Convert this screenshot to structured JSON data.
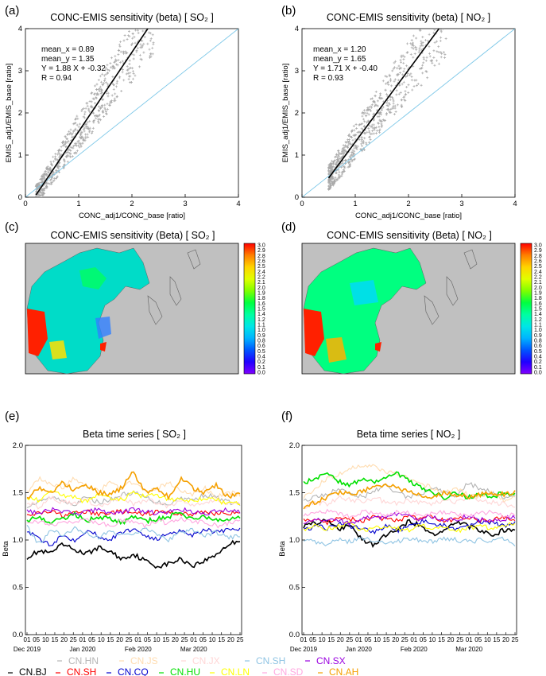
{
  "panels": {
    "a": {
      "letter": "(a)",
      "title": "CONC-EMIS sensitivity (beta) [ SO₂ ]",
      "xlabel": "CONC_adj1/CONC_base [ratio]",
      "ylabel": "EMIS_adj1/EMIS_base [ratio]",
      "stats": [
        "mean_x = 0.89",
        "mean_y = 1.35",
        "Y = 1.88 X + -0.32",
        "R = 0.94"
      ]
    },
    "b": {
      "letter": "(b)",
      "title": "CONC-EMIS sensitivity (beta) [ NO₂ ]",
      "xlabel": "CONC_adj1/CONC_base [ratio]",
      "ylabel": "EMIS_adj1/EMIS_base [ratio]",
      "stats": [
        "mean_x = 1.20",
        "mean_y = 1.65",
        "Y = 1.71 X + -0.40",
        "R = 0.93"
      ]
    },
    "c": {
      "letter": "(c)",
      "title": "CONC-EMIS sensitivity (Beta) [ SO₂ ]"
    },
    "d": {
      "letter": "(d)",
      "title": "CONC-EMIS sensitivity (Beta) [ NO₂ ]"
    },
    "e": {
      "letter": "(e)",
      "title": "Beta time series [ SO₂ ]",
      "ylabel": "Beta"
    },
    "f": {
      "letter": "(f)",
      "title": "Beta time series [ NO₂ ]",
      "ylabel": "Beta"
    }
  },
  "colorbar": {
    "ticks": [
      "3.0",
      "2.9",
      "2.8",
      "2.6",
      "2.5",
      "2.4",
      "2.2",
      "2.1",
      "2.0",
      "1.9",
      "1.8",
      "1.6",
      "1.5",
      "1.4",
      "1.2",
      "1.1",
      "1.0",
      "0.9",
      "0.8",
      "0.6",
      "0.5",
      "0.4",
      "0.2",
      "0.1",
      "0.0"
    ],
    "stops": [
      "#ff0000",
      "#ff7f00",
      "#ffd400",
      "#e0ff00",
      "#7fff00",
      "#00ff40",
      "#00ffa0",
      "#00e6e6",
      "#00b4ff",
      "#0055ff",
      "#2000ff",
      "#8000ff"
    ]
  },
  "timeseries_axis": {
    "day_ticks": [
      "01",
      "05",
      "10",
      "15",
      "20",
      "25",
      "01",
      "05",
      "10",
      "15",
      "20",
      "25",
      "01",
      "05",
      "10",
      "15",
      "20",
      "25",
      "01",
      "05",
      "10",
      "15",
      "20",
      "25"
    ],
    "month_labels": [
      "Dec 2019",
      "Jan 2020",
      "Feb 2020",
      "Mar 2020"
    ],
    "yticks": [
      "0.0",
      "0.5",
      "1.0",
      "1.5",
      "2.0"
    ]
  },
  "legend": [
    {
      "name": "CN.BJ",
      "color": "#000000"
    },
    {
      "name": "CN.HN",
      "color": "#b5b5b5"
    },
    {
      "name": "CN.SH",
      "color": "#ff0000"
    },
    {
      "name": "CN.JS",
      "color": "#ffdcb0"
    },
    {
      "name": "CN.CQ",
      "color": "#0000cd"
    },
    {
      "name": "CN.JX",
      "color": "#ffd6d6"
    },
    {
      "name": "CN.HU",
      "color": "#00e000"
    },
    {
      "name": "CN.SH",
      "color": "#8fc4e3"
    },
    {
      "name": "CN.LN",
      "color": "#ffff00"
    },
    {
      "name": "CN.SX",
      "color": "#9a00e0"
    },
    {
      "name": "CN.SD",
      "color": "#ffa8e0"
    },
    {
      "name": "CN.AH",
      "color": "#f5a000"
    }
  ],
  "chart_data": [
    {
      "type": "scatter",
      "title": "CONC-EMIS sensitivity (beta) [ SO₂ ]",
      "xlabel": "CONC_adj1/CONC_base [ratio]",
      "ylabel": "EMIS_adj1/EMIS_base [ratio]",
      "xlim": [
        0,
        4
      ],
      "ylim": [
        0,
        4
      ],
      "xticks": [
        0,
        1,
        2,
        3,
        4
      ],
      "yticks": [
        0,
        1,
        2,
        3,
        4
      ],
      "mean_x": 0.89,
      "mean_y": 1.35,
      "slope": 1.88,
      "intercept": -0.32,
      "r": 0.94,
      "fit_x_range": [
        0.2,
        2.3
      ],
      "point_color": "#a9a9a9",
      "fit_color": "#000000",
      "one_to_one_color": "#7ec8e8"
    },
    {
      "type": "scatter",
      "title": "CONC-EMIS sensitivity (beta) [ NO₂ ]",
      "xlabel": "CONC_adj1/CONC_base [ratio]",
      "ylabel": "EMIS_adj1/EMIS_base [ratio]",
      "xlim": [
        0,
        4
      ],
      "ylim": [
        0,
        4
      ],
      "xticks": [
        0,
        1,
        2,
        3,
        4
      ],
      "yticks": [
        0,
        1,
        2,
        3,
        4
      ],
      "mean_x": 1.2,
      "mean_y": 1.65,
      "slope": 1.71,
      "intercept": -0.4,
      "r": 0.93,
      "fit_x_range": [
        0.5,
        2.6
      ],
      "point_color": "#a9a9a9",
      "fit_color": "#000000",
      "one_to_one_color": "#7ec8e8"
    },
    {
      "type": "line",
      "title": "Beta time series [ SO₂ ]",
      "ylabel": "Beta",
      "ylim": [
        0,
        2
      ],
      "x": "daily, 2019-12-01 to 2020-03-25",
      "series": [
        {
          "name": "CN.BJ",
          "color": "#000000",
          "values": [
            0.82,
            0.88,
            0.86,
            0.95,
            0.9,
            0.85,
            0.92,
            0.88,
            0.8,
            0.85,
            0.78,
            0.72,
            0.75,
            0.8,
            0.73,
            0.78,
            0.85,
            0.95,
            1.0
          ]
        },
        {
          "name": "CN.HN",
          "color": "#b5b5b5",
          "values": [
            1.35,
            1.4,
            1.45,
            1.42,
            1.38,
            1.45,
            1.4,
            1.42,
            1.48,
            1.5,
            1.45,
            1.4,
            1.38,
            1.45,
            1.42,
            1.48,
            1.45,
            1.4,
            1.38
          ]
        },
        {
          "name": "CN.SH",
          "color": "#ff0000",
          "values": [
            1.25,
            1.28,
            1.3,
            1.26,
            1.28,
            1.3,
            1.27,
            1.29,
            1.3,
            1.28,
            1.27,
            1.3,
            1.29,
            1.28,
            1.27,
            1.3,
            1.28,
            1.29,
            1.27
          ]
        },
        {
          "name": "CN.JS",
          "color": "#ffdcb0",
          "values": [
            1.5,
            1.65,
            1.6,
            1.55,
            1.65,
            1.58,
            1.52,
            1.6,
            1.55,
            1.62,
            1.5,
            1.55,
            1.6,
            1.52,
            1.48,
            1.55,
            1.45,
            1.5,
            1.48
          ]
        },
        {
          "name": "CN.CQ",
          "color": "#0000cd",
          "values": [
            1.08,
            1.02,
            0.95,
            1.05,
            1.0,
            1.1,
            1.05,
            1.0,
            1.08,
            1.12,
            1.05,
            1.0,
            1.08,
            1.1,
            1.05,
            1.12,
            1.08,
            1.1,
            1.12
          ]
        },
        {
          "name": "CN.JX",
          "color": "#ffd6d6",
          "values": [
            1.4,
            1.35,
            1.45,
            1.4,
            1.38,
            1.42,
            1.35,
            1.4,
            1.45,
            1.38,
            1.42,
            1.4,
            1.35,
            1.42,
            1.38,
            1.4,
            1.42,
            1.38,
            1.4
          ]
        },
        {
          "name": "CN.HU",
          "color": "#00e000",
          "values": [
            1.2,
            1.25,
            1.18,
            1.22,
            1.28,
            1.2,
            1.25,
            1.22,
            1.18,
            1.25,
            1.2,
            1.22,
            1.25,
            1.28,
            1.22,
            1.25,
            1.2,
            1.22,
            1.25
          ]
        },
        {
          "name": "CN.SH",
          "color": "#8fc4e3",
          "values": [
            1.15,
            0.95,
            1.1,
            1.05,
            1.12,
            1.08,
            1.02,
            1.1,
            1.05,
            1.08,
            1.12,
            1.05,
            1.0,
            1.08,
            1.1,
            1.05,
            1.08,
            1.02,
            1.05
          ]
        },
        {
          "name": "CN.LN",
          "color": "#ffff00",
          "values": [
            1.45,
            1.42,
            1.5,
            1.48,
            1.45,
            1.4,
            1.48,
            1.45,
            1.42,
            1.5,
            1.45,
            1.48,
            1.42,
            1.45,
            1.4,
            1.45,
            1.42,
            1.38,
            1.4
          ]
        },
        {
          "name": "CN.SX",
          "color": "#9a00e0",
          "values": [
            1.3,
            1.28,
            1.32,
            1.3,
            1.28,
            1.3,
            1.32,
            1.28,
            1.3,
            1.32,
            1.3,
            1.28,
            1.3,
            1.32,
            1.3,
            1.28,
            1.3,
            1.32,
            1.3
          ]
        },
        {
          "name": "CN.SD",
          "color": "#ffa8e0",
          "values": [
            1.18,
            1.2,
            1.15,
            1.2,
            1.18,
            1.22,
            1.18,
            1.15,
            1.2,
            1.18,
            1.15,
            1.2,
            1.18,
            1.22,
            1.18,
            1.2,
            1.15,
            1.18,
            1.2
          ]
        },
        {
          "name": "CN.AH",
          "color": "#f5a000",
          "values": [
            1.45,
            1.55,
            1.5,
            1.6,
            1.52,
            1.58,
            1.5,
            1.48,
            1.55,
            1.72,
            1.5,
            1.55,
            1.45,
            1.65,
            1.55,
            1.5,
            1.58,
            1.45,
            1.5
          ]
        }
      ]
    },
    {
      "type": "line",
      "title": "Beta time series [ NO₂ ]",
      "ylabel": "Beta",
      "ylim": [
        0,
        2
      ],
      "x": "daily, 2019-12-01 to 2020-03-25",
      "series": [
        {
          "name": "CN.BJ",
          "color": "#000000",
          "values": [
            1.15,
            1.18,
            1.2,
            1.12,
            1.15,
            1.0,
            0.95,
            1.05,
            1.12,
            1.2,
            1.15,
            1.05,
            1.1,
            1.2,
            1.15,
            1.1,
            1.05,
            1.1,
            1.12
          ]
        },
        {
          "name": "CN.HN",
          "color": "#b5b5b5",
          "values": [
            1.4,
            1.45,
            1.48,
            1.55,
            1.5,
            1.45,
            1.52,
            1.58,
            1.5,
            1.45,
            1.48,
            1.55,
            1.5,
            1.45,
            1.6,
            1.55,
            1.5,
            1.45,
            1.48
          ]
        },
        {
          "name": "CN.SH",
          "color": "#ff0000",
          "values": [
            1.2,
            1.22,
            1.18,
            1.25,
            1.22,
            1.2,
            1.25,
            1.22,
            1.2,
            1.25,
            1.22,
            1.25,
            1.2,
            1.22,
            1.25,
            1.2,
            1.22,
            1.25,
            1.22
          ]
        },
        {
          "name": "CN.JS",
          "color": "#ffdcb0",
          "values": [
            1.45,
            1.55,
            1.65,
            1.7,
            1.75,
            1.8,
            1.78,
            1.72,
            1.7,
            1.65,
            1.6,
            1.55,
            1.5,
            1.55,
            1.48,
            1.45,
            1.5,
            1.42,
            1.45
          ]
        },
        {
          "name": "CN.CQ",
          "color": "#0000cd",
          "values": [
            1.1,
            1.15,
            1.12,
            1.18,
            1.15,
            1.12,
            1.08,
            1.15,
            1.1,
            1.15,
            1.2,
            1.18,
            1.15,
            1.12,
            1.15,
            1.2,
            1.18,
            1.15,
            1.18
          ]
        },
        {
          "name": "CN.JX",
          "color": "#ffd6d6",
          "values": [
            1.35,
            1.4,
            1.38,
            1.45,
            1.42,
            1.4,
            1.45,
            1.4,
            1.38,
            1.42,
            1.4,
            1.38,
            1.42,
            1.4,
            1.45,
            1.42,
            1.4,
            1.38,
            1.35
          ]
        },
        {
          "name": "CN.HU",
          "color": "#00e000",
          "values": [
            1.6,
            1.65,
            1.7,
            1.62,
            1.58,
            1.65,
            1.6,
            1.65,
            1.7,
            1.62,
            1.55,
            1.5,
            1.45,
            1.5,
            1.45,
            1.48,
            1.45,
            1.5,
            1.48
          ]
        },
        {
          "name": "CN.SH",
          "color": "#8fc4e3",
          "values": [
            1.0,
            0.98,
            0.95,
            1.0,
            0.98,
            1.02,
            1.0,
            0.95,
            0.98,
            1.02,
            1.0,
            0.98,
            1.02,
            1.0,
            0.98,
            1.0,
            0.98,
            1.02,
            0.95
          ]
        },
        {
          "name": "CN.LN",
          "color": "#ffff00",
          "values": [
            1.1,
            1.15,
            1.12,
            1.15,
            1.18,
            1.1,
            1.12,
            1.15,
            1.12,
            1.1,
            1.15,
            1.12,
            1.15,
            1.1,
            1.12,
            1.15,
            1.12,
            1.15,
            1.18
          ]
        },
        {
          "name": "CN.SX",
          "color": "#9a00e0",
          "values": [
            1.18,
            1.2,
            1.22,
            1.2,
            1.18,
            1.22,
            1.25,
            1.22,
            1.28,
            1.25,
            1.22,
            1.25,
            1.2,
            1.22,
            1.25,
            1.22,
            1.2,
            1.22,
            1.25
          ]
        },
        {
          "name": "CN.SD",
          "color": "#ffa8e0",
          "values": [
            1.25,
            1.28,
            1.3,
            1.28,
            1.25,
            1.3,
            1.28,
            1.25,
            1.3,
            1.28,
            1.25,
            1.28,
            1.3,
            1.28,
            1.25,
            1.28,
            1.3,
            1.25,
            1.28
          ]
        },
        {
          "name": "CN.AH",
          "color": "#f5a000",
          "values": [
            1.35,
            1.4,
            1.45,
            1.5,
            1.48,
            1.52,
            1.55,
            1.6,
            1.55,
            1.5,
            1.48,
            1.45,
            1.5,
            1.48,
            1.45,
            1.48,
            1.5,
            1.48,
            1.5
          ]
        }
      ]
    }
  ]
}
